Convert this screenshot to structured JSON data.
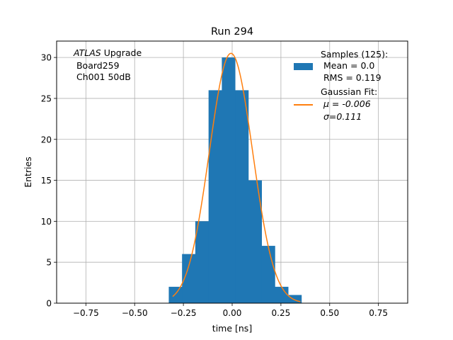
{
  "chart_data": {
    "type": "bar",
    "title": "Run 294",
    "xlabel": "time [ns]",
    "ylabel": "Entries",
    "xlim": [
      -0.9,
      0.9
    ],
    "ylim": [
      0,
      32
    ],
    "grid": true,
    "xticks": [
      -0.75,
      -0.5,
      -0.25,
      0.0,
      0.25,
      0.5,
      0.75
    ],
    "xtick_labels": [
      "−0.75",
      "−0.50",
      "−0.25",
      "0.00",
      "0.25",
      "0.50",
      "0.75"
    ],
    "yticks": [
      0,
      5,
      10,
      15,
      20,
      25,
      30
    ],
    "ytick_labels": [
      "0",
      "5",
      "10",
      "15",
      "20",
      "25",
      "30"
    ],
    "histogram": {
      "bin_edges": [
        -0.325,
        -0.257,
        -0.189,
        -0.121,
        -0.053,
        0.015,
        0.083,
        0.151,
        0.219,
        0.287,
        0.355
      ],
      "counts": [
        2,
        6,
        10,
        26,
        30,
        26,
        15,
        7,
        2,
        1
      ],
      "color": "#1f77b4"
    },
    "fit": {
      "mu": -0.006,
      "sigma": 0.111,
      "amplitude": 30.5,
      "x_range": [
        -0.305,
        0.35
      ],
      "color": "#ff7f0e"
    },
    "annotation": {
      "line1_italic": "ATLAS",
      "line1_rest": " Upgrade",
      "line2": " Board259",
      "line3": " Ch001 50dB"
    },
    "legend": {
      "placement": "top-right",
      "samples_lines": [
        "Samples (125):",
        " Mean = 0.0",
        " RMS = 0.119"
      ],
      "fit_lines": [
        "Gaussian Fit:",
        " μ = -0.006",
        " σ=0.111"
      ]
    }
  }
}
